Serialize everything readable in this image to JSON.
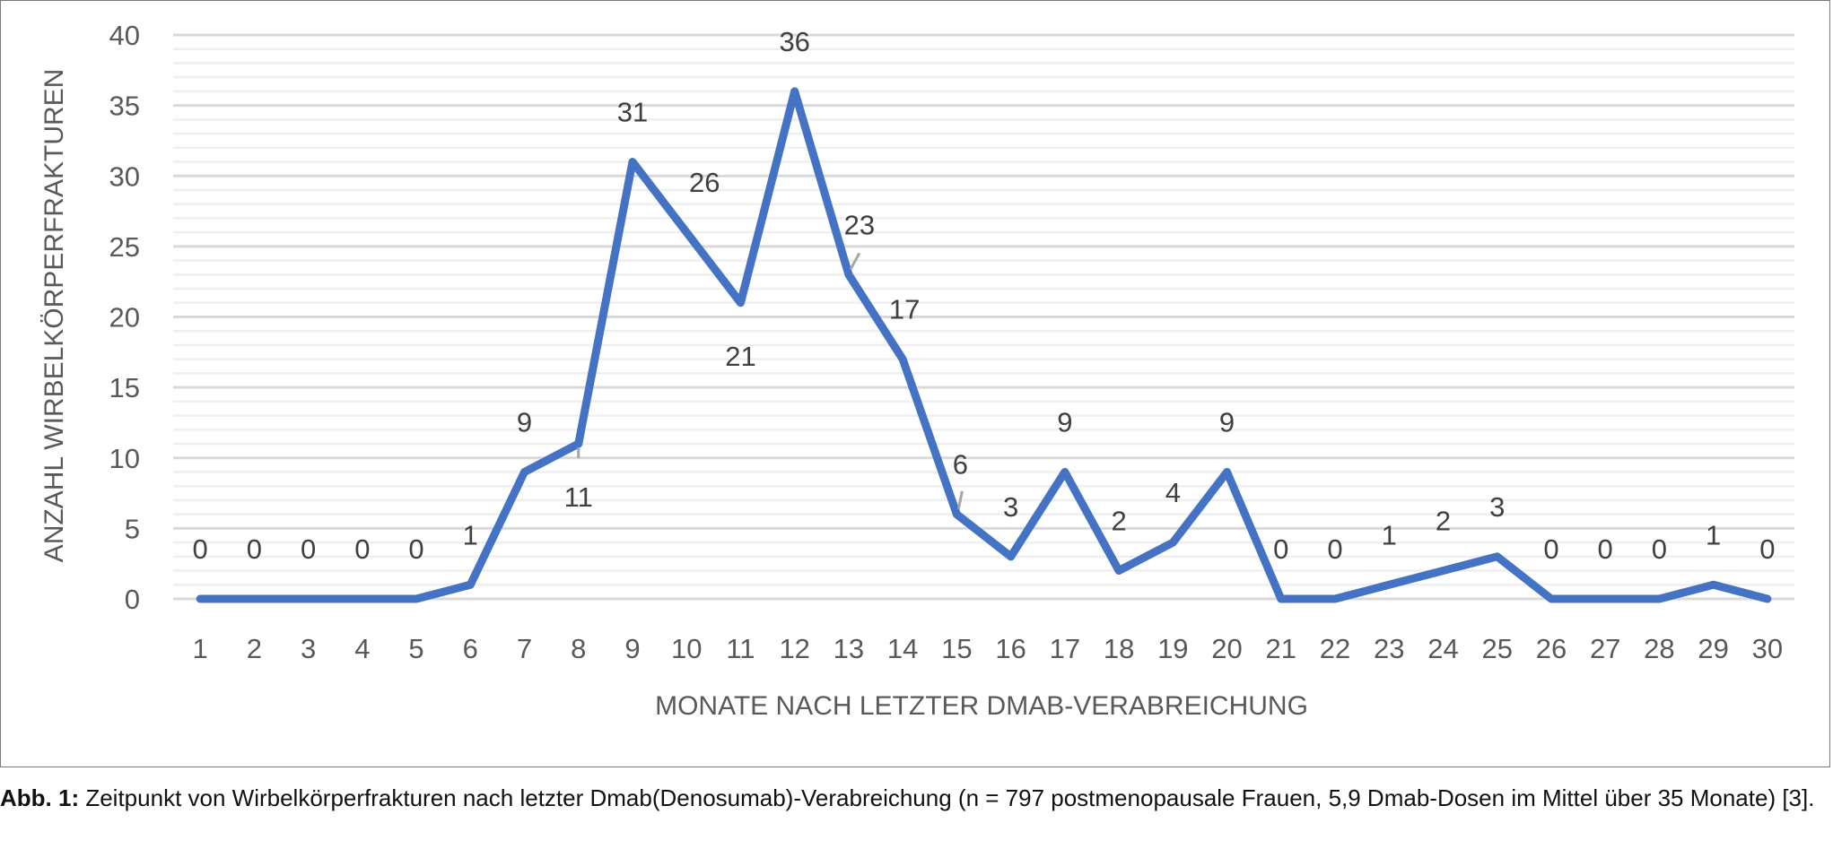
{
  "chart_data": {
    "type": "line",
    "title": "",
    "xlabel": "MONATE NACH LETZTER DMAB-VERABREICHUNG",
    "ylabel": "ANZAHL WIRBELKÖRPERFRAKTUREN",
    "categories": [
      "1",
      "2",
      "3",
      "4",
      "5",
      "6",
      "7",
      "8",
      "9",
      "10",
      "11",
      "12",
      "13",
      "14",
      "15",
      "16",
      "17",
      "18",
      "19",
      "20",
      "21",
      "22",
      "23",
      "24",
      "25",
      "26",
      "27",
      "28",
      "29",
      "30"
    ],
    "series": [
      {
        "name": "Wirbelkörperfrakturen",
        "values": [
          0,
          0,
          0,
          0,
          0,
          1,
          9,
          11,
          31,
          26,
          21,
          36,
          23,
          17,
          6,
          3,
          9,
          2,
          4,
          9,
          0,
          0,
          1,
          2,
          3,
          0,
          0,
          0,
          1,
          0
        ]
      }
    ],
    "ylim": [
      0,
      40
    ],
    "yticks": [
      0,
      5,
      10,
      15,
      20,
      25,
      30,
      35,
      40
    ],
    "grid": true,
    "data_labels": true,
    "legend": "none",
    "colors": {
      "line": "#4472C4",
      "grid_major": "#d9d9d9",
      "grid_minor": "#efefef"
    }
  },
  "caption": {
    "label": "Abb. 1:",
    "text": "Zeitpunkt von Wirbelkörperfrakturen nach letzter Dmab(Denosumab)-Verabreichung (n = 797 postmenopausale Frauen, 5,9 Dmab-Dosen im Mittel über 35 Monate) [3]."
  }
}
